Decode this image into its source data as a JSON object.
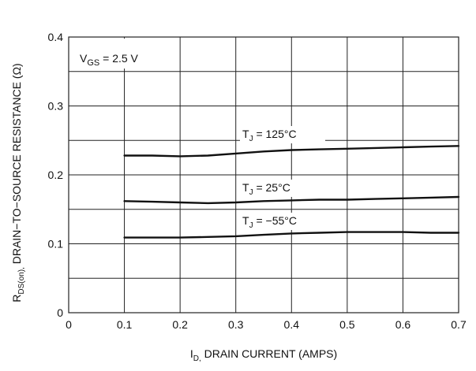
{
  "chart_data": {
    "type": "line",
    "x_axis": {
      "label_main": "I",
      "label_sub": "D,",
      "label_rest": " DRAIN CURRENT (AMPS)",
      "range": [
        0,
        0.7
      ],
      "ticks": [
        0,
        0.1,
        0.2,
        0.3,
        0.4,
        0.5,
        0.6,
        0.7
      ],
      "tick_labels": [
        "0",
        "0.1",
        "0.2",
        "0.3",
        "0.4",
        "0.5",
        "0.6",
        "0.7"
      ]
    },
    "y_axis": {
      "label_main": "R",
      "label_sub": "DS(on),",
      "label_rest": " DRAIN−TO−SOURCE RESISTANCE (Ω)",
      "range": [
        0,
        0.4
      ],
      "ticks": [
        0,
        0.1,
        0.2,
        0.3,
        0.4
      ],
      "tick_labels": [
        "0",
        "0.1",
        "0.2",
        "0.3",
        "0.4"
      ],
      "minor_step": 0.05
    },
    "grid": true,
    "condition": {
      "main": "V",
      "sub": "GS",
      "rest": " =  2.5 V"
    },
    "series": [
      {
        "name": "T_J = 125°C",
        "label_main": "T",
        "label_sub": "J",
        "label_rest": " = 125°C",
        "x": [
          0.1,
          0.15,
          0.2,
          0.25,
          0.3,
          0.35,
          0.4,
          0.45,
          0.5,
          0.55,
          0.6,
          0.65,
          0.7
        ],
        "y": [
          0.228,
          0.228,
          0.227,
          0.228,
          0.231,
          0.234,
          0.236,
          0.237,
          0.238,
          0.239,
          0.24,
          0.241,
          0.242
        ]
      },
      {
        "name": "T_J = 25°C",
        "label_main": "T",
        "label_sub": "J",
        "label_rest": " = 25°C",
        "x": [
          0.1,
          0.15,
          0.2,
          0.25,
          0.3,
          0.35,
          0.4,
          0.45,
          0.5,
          0.55,
          0.6,
          0.65,
          0.7
        ],
        "y": [
          0.162,
          0.161,
          0.16,
          0.159,
          0.16,
          0.162,
          0.163,
          0.164,
          0.164,
          0.165,
          0.166,
          0.167,
          0.168
        ]
      },
      {
        "name": "T_J = −55°C",
        "label_main": "T",
        "label_sub": "J",
        "label_rest": " = −55°C",
        "x": [
          0.1,
          0.15,
          0.2,
          0.25,
          0.3,
          0.35,
          0.4,
          0.45,
          0.5,
          0.55,
          0.6,
          0.65,
          0.7
        ],
        "y": [
          0.109,
          0.109,
          0.109,
          0.11,
          0.111,
          0.113,
          0.115,
          0.116,
          0.117,
          0.117,
          0.117,
          0.116,
          0.116
        ]
      }
    ],
    "colors": {
      "line": "#111111",
      "grid": "#222222",
      "background": "#ffffff"
    }
  }
}
